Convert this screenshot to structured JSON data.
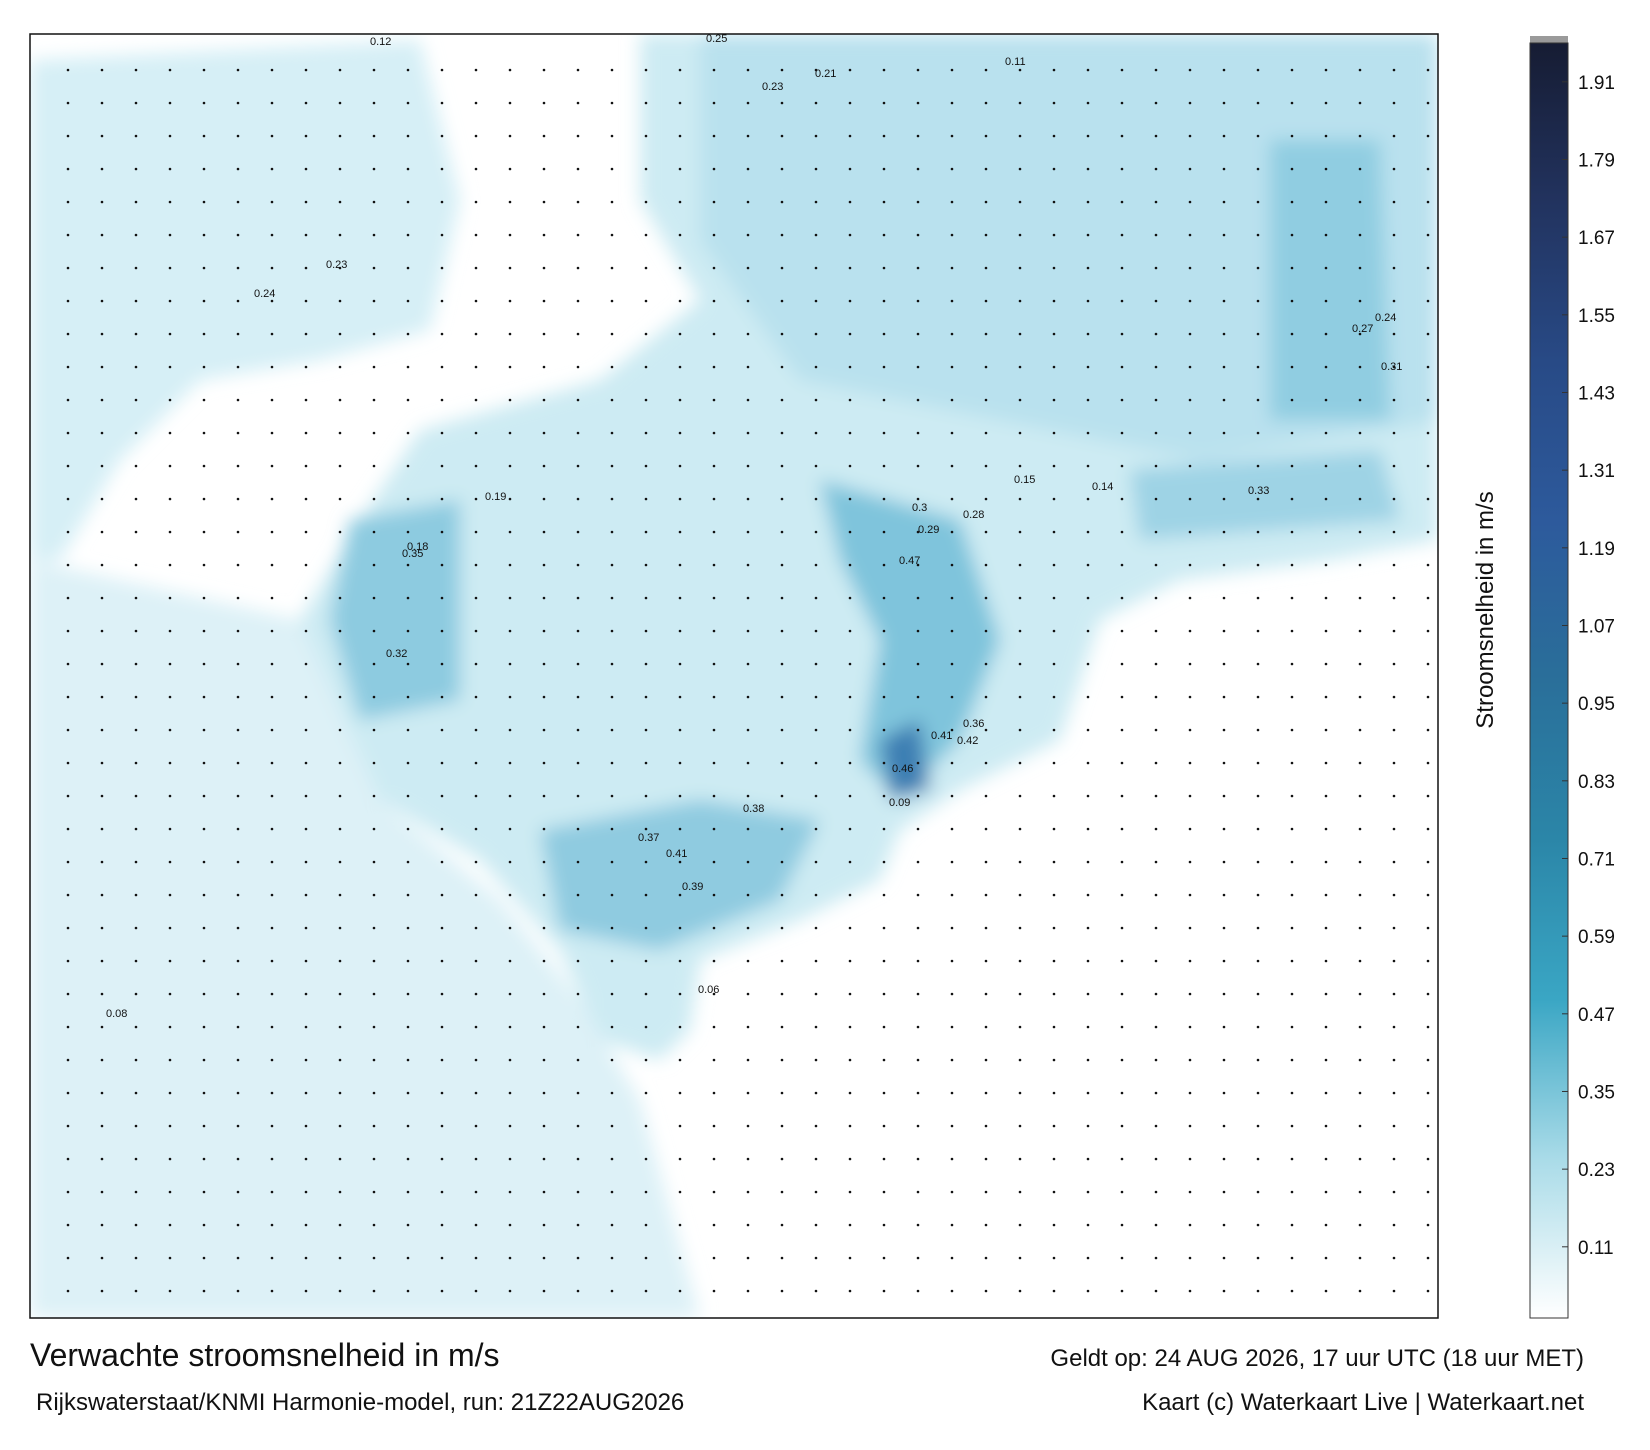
{
  "map": {
    "title": "Verwachte stroomsnelheid in m/s",
    "valid_time": "Geldt op: 24 AUG 2026, 17 uur UTC (18 uur MET)",
    "source": "Rijkswaterstaat/KNMI Harmonie-model, run: 21Z22AUG2026",
    "credit": "Kaart (c) Waterkaart Live | Waterkaart.net",
    "labels": [
      0.47,
      0.46,
      0.41,
      0.42,
      0.41,
      0.39,
      0.37,
      0.38,
      0.36,
      0.35,
      0.32,
      0.31,
      0.33,
      0.3,
      0.28,
      0.29,
      0.25,
      0.23,
      0.21,
      0.24,
      0.27,
      0.19,
      0.23,
      0.24,
      0.18,
      0.12,
      0.11,
      0.15,
      0.14,
      0.09,
      0.06,
      0.08
    ]
  },
  "colorbar": {
    "label": "Stroomsnelheid in m/s",
    "range": [
      0,
      1.97
    ],
    "ticks": [
      0.11,
      0.23,
      0.35,
      0.47,
      0.59,
      0.71,
      0.83,
      0.95,
      1.07,
      1.19,
      1.31,
      1.43,
      1.55,
      1.67,
      1.79,
      1.91
    ],
    "colors": [
      "#ffffff",
      "#a9dbe8",
      "#3aa6c4",
      "#2b86a8",
      "#2a6f9a",
      "#2d5a9c",
      "#284a86",
      "#22335f",
      "#161c33"
    ]
  }
}
